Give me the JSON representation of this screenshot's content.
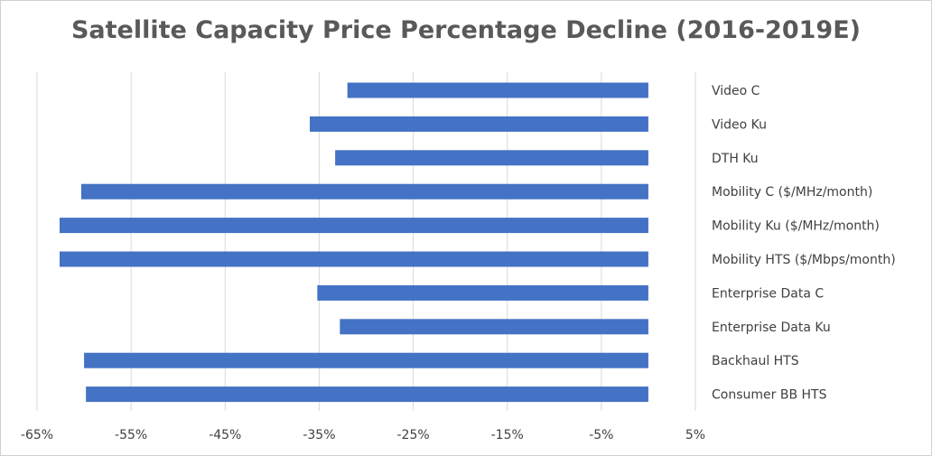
{
  "chart_data": {
    "type": "bar",
    "orientation": "horizontal",
    "title": "Satellite Capacity Price Percentage Decline (2016-2019E)",
    "xlabel": "",
    "ylabel": "",
    "xlim": [
      -65,
      5
    ],
    "x_ticks": [
      "-65%",
      "-55%",
      "-45%",
      "-35%",
      "-25%",
      "-15%",
      "-5%",
      "5%"
    ],
    "x_tick_values": [
      -65,
      -55,
      -45,
      -35,
      -25,
      -15,
      -5,
      5
    ],
    "grid": true,
    "bar_color": "#4472C4",
    "categories": [
      "Video C",
      "Video Ku",
      "DTH Ku",
      "Mobility C ($/MHz/month)",
      "Mobility Ku ($/MHz/month)",
      "Mobility HTS ($/Mbps/month)",
      "Enterprise Data C",
      "Enterprise Data Ku",
      "Backhaul HTS",
      "Consumer BB HTS"
    ],
    "values": [
      -32,
      -36,
      -33.3,
      -60.3,
      -62.6,
      -62.6,
      -35.2,
      -32.8,
      -60,
      -59.8
    ]
  }
}
